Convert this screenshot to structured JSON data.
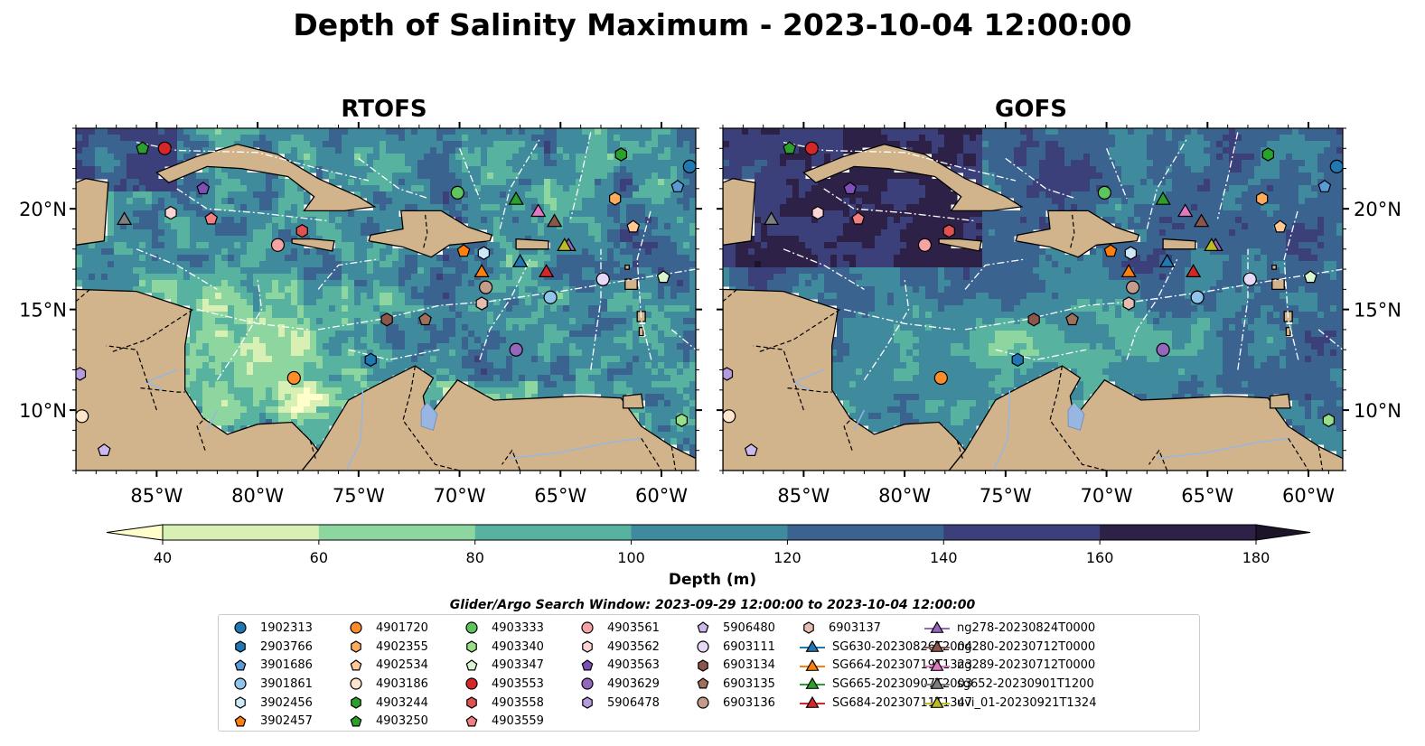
{
  "title": "Depth of Salinity Maximum - 2023-10-04 12:00:00",
  "panels": [
    {
      "name": "RTOFS"
    },
    {
      "name": "GOFS"
    }
  ],
  "map": {
    "lon_range": [
      -89,
      -58.3
    ],
    "lat_range": [
      7,
      24
    ],
    "lon_ticks": [
      -85,
      -80,
      -75,
      -70,
      -65,
      -60
    ],
    "lon_tick_labels": [
      "85°W",
      "80°W",
      "75°W",
      "70°W",
      "65°W",
      "60°W"
    ],
    "lat_ticks": [
      10,
      15,
      20
    ],
    "lat_tick_labels": [
      "10°N",
      "15°N",
      "20°N"
    ],
    "land_color": "#d2b48c",
    "river_color": "#97b6e1"
  },
  "colorbar": {
    "label": "Depth (m)",
    "levels": [
      40,
      60,
      80,
      100,
      120,
      140,
      160,
      180
    ],
    "tick_labels": [
      "40",
      "60",
      "80",
      "100",
      "120",
      "140",
      "160",
      "180"
    ],
    "colors": [
      "#d9f0b4",
      "#8ed6a0",
      "#57b3a0",
      "#3f8a9c",
      "#3a6390",
      "#3b3f7a",
      "#2e2148"
    ],
    "under_color": "#ffffcc",
    "over_color": "#1c1428",
    "extend": "both"
  },
  "search_window": "Glider/Argo Search Window: 2023-09-29 12:00:00 to 2023-10-04 12:00:00",
  "legend_entries": [
    {
      "label": "1902313",
      "marker": "circle",
      "color": "#1f77b4",
      "lon": -58.6,
      "lat": 22.1
    },
    {
      "label": "2903766",
      "marker": "hexagon",
      "color": "#1f77b4",
      "lon": -74.4,
      "lat": 12.5
    },
    {
      "label": "3901686",
      "marker": "pentagon",
      "color": "#5b9bd5",
      "lon": -59.2,
      "lat": 21.1
    },
    {
      "label": "3901861",
      "marker": "circle",
      "color": "#8fc5ea",
      "lon": -65.5,
      "lat": 15.6
    },
    {
      "label": "3902456",
      "marker": "hexagon",
      "color": "#cde8f7",
      "lon": -68.8,
      "lat": 17.8
    },
    {
      "label": "3902457",
      "marker": "pentagon",
      "color": "#ff7f0e",
      "lon": -69.8,
      "lat": 17.9
    },
    {
      "label": "4901720",
      "marker": "circle",
      "color": "#ff8c29",
      "lon": -78.2,
      "lat": 11.6
    },
    {
      "label": "4902355",
      "marker": "hexagon",
      "color": "#ffab5e",
      "lon": -62.3,
      "lat": 20.5
    },
    {
      "label": "4902534",
      "marker": "pentagon",
      "color": "#ffc895",
      "lon": -61.4,
      "lat": 19.1
    },
    {
      "label": "4903186",
      "marker": "circle",
      "color": "#ffe5cc",
      "lon": -88.7,
      "lat": 9.7
    },
    {
      "label": "4903244",
      "marker": "hexagon",
      "color": "#2ca02c",
      "lon": -62.0,
      "lat": 22.7
    },
    {
      "label": "4903250",
      "marker": "pentagon",
      "color": "#2ca02c",
      "lon": -85.7,
      "lat": 23.0
    },
    {
      "label": "4903333",
      "marker": "circle",
      "color": "#5ec45e",
      "lon": -70.1,
      "lat": 20.8
    },
    {
      "label": "4903340",
      "marker": "hexagon",
      "color": "#98df8a",
      "lon": -59.0,
      "lat": 9.5
    },
    {
      "label": "4903347",
      "marker": "pentagon",
      "color": "#d8f5cf",
      "lon": -59.9,
      "lat": 16.6
    },
    {
      "label": "4903553",
      "marker": "circle",
      "color": "#d62728",
      "lon": -84.6,
      "lat": 23.0
    },
    {
      "label": "4903558",
      "marker": "hexagon",
      "color": "#e05252",
      "lon": -77.8,
      "lat": 18.9
    },
    {
      "label": "4903559",
      "marker": "pentagon",
      "color": "#f28080",
      "lon": -82.3,
      "lat": 19.5
    },
    {
      "label": "4903561",
      "marker": "circle",
      "color": "#f5a3a3",
      "lon": -79.0,
      "lat": 18.2
    },
    {
      "label": "4903562",
      "marker": "hexagon",
      "color": "#fbd5d5",
      "lon": -84.3,
      "lat": 19.8
    },
    {
      "label": "4903563",
      "marker": "pentagon",
      "color": "#7f4fb8",
      "lon": -82.7,
      "lat": 21.0
    },
    {
      "label": "4903629",
      "marker": "circle",
      "color": "#9467bd",
      "lon": -67.2,
      "lat": 13.0
    },
    {
      "label": "5906478",
      "marker": "hexagon",
      "color": "#b59bde",
      "lon": -88.8,
      "lat": 11.8
    },
    {
      "label": "5906480",
      "marker": "pentagon",
      "color": "#cbb8ec",
      "lon": -87.6,
      "lat": 8.0
    },
    {
      "label": "6903111",
      "marker": "circle",
      "color": "#e8d8f7",
      "lon": -62.9,
      "lat": 16.5
    },
    {
      "label": "6903134",
      "marker": "hexagon",
      "color": "#8c564b",
      "lon": -73.6,
      "lat": 14.5
    },
    {
      "label": "6903135",
      "marker": "pentagon",
      "color": "#a0705f",
      "lon": -71.7,
      "lat": 14.5
    },
    {
      "label": "6903136",
      "marker": "circle",
      "color": "#c49c8c",
      "lon": -68.7,
      "lat": 16.1
    },
    {
      "label": "6903137",
      "marker": "hexagon",
      "color": "#e4bcb0",
      "lon": -68.9,
      "lat": 15.3
    },
    {
      "label": "SG630-20230826T2004",
      "marker": "triangle",
      "color": "#1f77b4",
      "lon": -67.0,
      "lat": 17.4
    },
    {
      "label": "SG664-20230719T1323",
      "marker": "triangle",
      "color": "#ff7f0e",
      "lon": -68.9,
      "lat": 16.9
    },
    {
      "label": "SG665-20230907T2003",
      "marker": "triangle",
      "color": "#2ca02c",
      "lon": -67.2,
      "lat": 20.5
    },
    {
      "label": "SG684-20230711T1347",
      "marker": "triangle",
      "color": "#d62728",
      "lon": -65.7,
      "lat": 16.9
    },
    {
      "label": "ng278-20230824T0000",
      "marker": "triangle",
      "color": "#9467bd",
      "lon": -64.6,
      "lat": 18.2
    },
    {
      "label": "ng280-20230712T0000",
      "marker": "triangle",
      "color": "#8c564b",
      "lon": -65.3,
      "lat": 19.4
    },
    {
      "label": "ng289-20230712T0000",
      "marker": "triangle",
      "color": "#e377c2",
      "lon": -66.1,
      "lat": 19.9
    },
    {
      "label": "sg652-20230901T1200",
      "marker": "triangle",
      "color": "#7f7f7f",
      "lon": -86.6,
      "lat": 19.5
    },
    {
      "label": "uvi_01-20230921T1324",
      "marker": "triangle",
      "color": "#bcbd22",
      "lon": -64.8,
      "lat": 18.2
    }
  ]
}
